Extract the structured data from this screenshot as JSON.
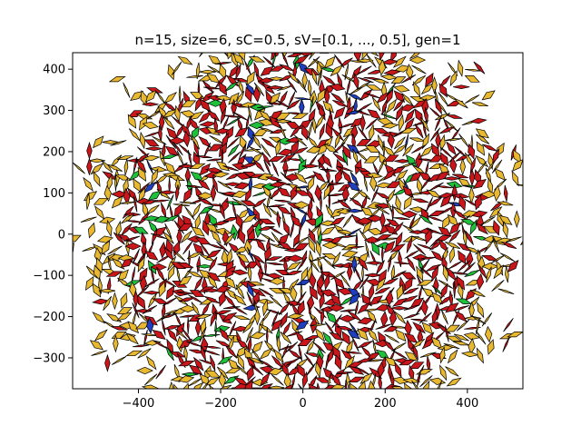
{
  "chart_data": {
    "type": "scatter",
    "title": "n=15, size=6, sC=0.5, sV=[0.1, ..., 0.5], gen=1",
    "xlabel": "",
    "ylabel": "",
    "xlim": [
      -560,
      535
    ],
    "ylim": [
      -375,
      440
    ],
    "xticks": [
      -400,
      -200,
      0,
      200,
      400
    ],
    "yticks": [
      -300,
      -200,
      -100,
      0,
      100,
      200,
      300,
      400
    ],
    "xtick_labels": [
      "−400",
      "−200",
      "0",
      "200",
      "400"
    ],
    "ytick_labels": [
      "−300",
      "−200",
      "−100",
      "0",
      "100",
      "200",
      "300",
      "400"
    ],
    "grid": false,
    "tiling": {
      "symmetry": 15,
      "tile_size": 6,
      "edge_color": "#000000",
      "colors": {
        "outer": "#e8b830",
        "inner": "#c8161a",
        "accent_green": "#1fc13a",
        "accent_blue": "#1f3fc0"
      },
      "pattern_radius": 560
    }
  }
}
